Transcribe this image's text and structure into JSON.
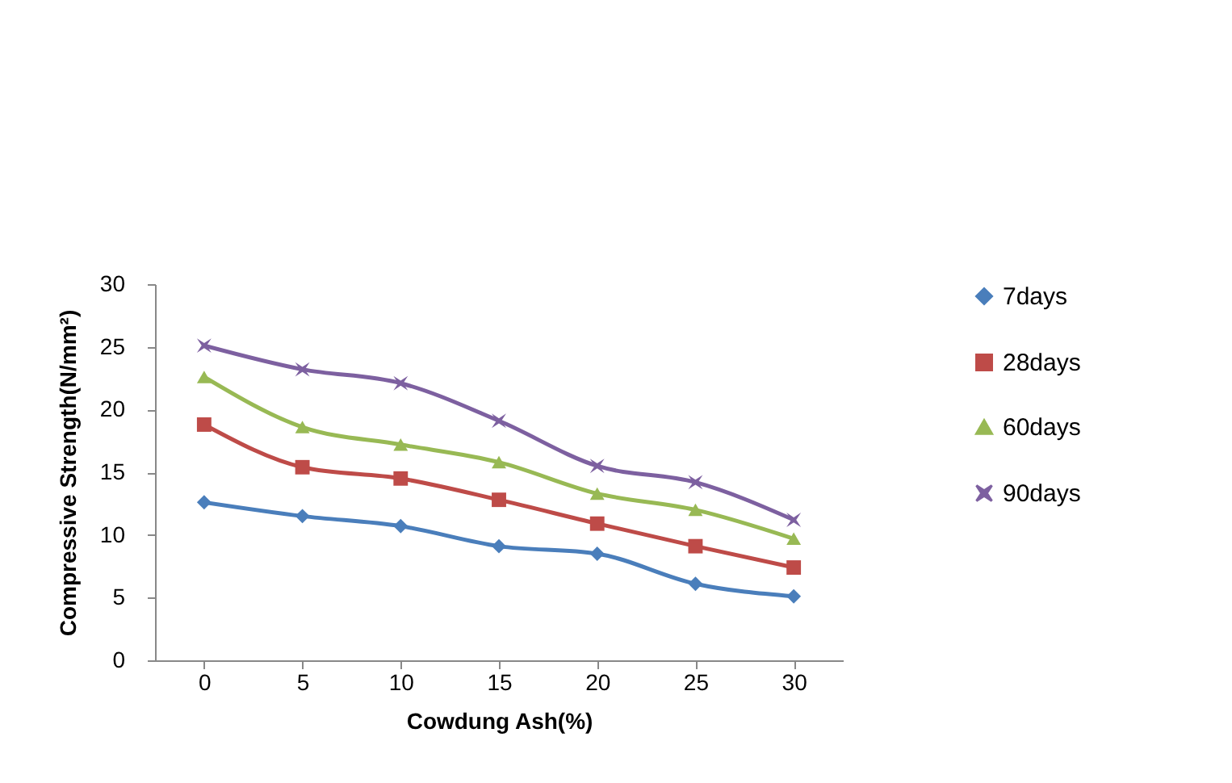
{
  "chart_data": {
    "type": "line",
    "xlabel": "Cowdung Ash(%)",
    "ylabel": "Compressive Strength(N/mm²)",
    "categories": [
      "0",
      "5",
      "10",
      "15",
      "20",
      "25",
      "30"
    ],
    "series": [
      {
        "name": "7days",
        "color": "#4a7ebb",
        "marker": "diamond",
        "values": [
          12.6,
          11.5,
          10.7,
          9.1,
          8.5,
          6.1,
          5.1
        ]
      },
      {
        "name": "28days",
        "color": "#be4b48",
        "marker": "square",
        "values": [
          18.8,
          15.4,
          14.5,
          12.8,
          10.9,
          9.1,
          7.4
        ]
      },
      {
        "name": "60days",
        "color": "#98b954",
        "marker": "triangle",
        "values": [
          22.6,
          18.6,
          17.2,
          15.8,
          13.3,
          12.0,
          9.7
        ]
      },
      {
        "name": "90days",
        "color": "#7d60a0",
        "marker": "cross",
        "values": [
          25.1,
          23.2,
          22.1,
          19.1,
          15.5,
          14.2,
          11.2
        ]
      }
    ],
    "ylim": [
      0,
      30
    ],
    "yticks": [
      0,
      5,
      10,
      15,
      20,
      25,
      30
    ],
    "grid": false,
    "legend": "right",
    "line_style": "solid"
  }
}
